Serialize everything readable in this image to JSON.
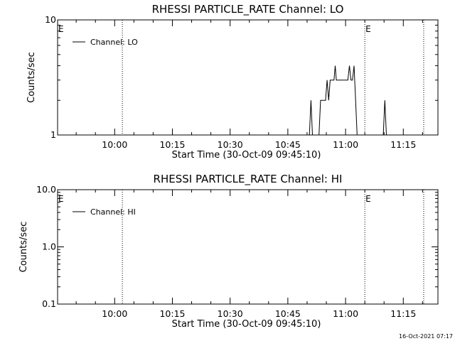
{
  "chart_data": [
    {
      "type": "line",
      "title": "RHESSI PARTICLE_RATE Channel: LO",
      "xlabel": "Start Time (30-Oct-09 09:45:10)",
      "ylabel": "Counts/sec",
      "yscale": "log",
      "ylim": [
        1,
        10
      ],
      "y_tick_labels": [
        "1",
        "10"
      ],
      "x_tick_labels": [
        "10:00",
        "10:15",
        "10:30",
        "10:45",
        "11:00",
        "11:15"
      ],
      "x_tick_minutes": [
        60,
        75,
        90,
        105,
        120,
        135
      ],
      "xlim_minutes": [
        45.17,
        144.0
      ],
      "legend": "top-left",
      "grid": false,
      "series": [
        {
          "name": "Channel: LO",
          "x_minutes": [
            110.0,
            110.6,
            111.0,
            111.4,
            111.8,
            112.3,
            112.7,
            113.1,
            113.5,
            114.0,
            114.4,
            114.8,
            115.2,
            115.6,
            116.0,
            116.3,
            116.7,
            117.0,
            117.3,
            117.6,
            117.9,
            118.2,
            118.6,
            119.0,
            119.4,
            119.8,
            120.2,
            120.6,
            121.0,
            121.4,
            121.8,
            122.2,
            122.6,
            123.0,
            123.4,
            123.8,
            124.2,
            124.6,
            125.0,
            125.4,
            125.8,
            126.2,
            126.6,
            127.0,
            127.4,
            127.8,
            128.2,
            128.6,
            129.0,
            129.4,
            129.8,
            130.2,
            130.6,
            131.0
          ],
          "values": [
            1,
            1,
            2,
            1,
            1,
            1,
            1,
            1,
            2,
            2,
            2,
            2,
            3,
            2,
            3,
            3,
            3,
            3,
            4,
            3,
            3,
            3,
            3,
            3,
            3,
            3,
            3,
            3,
            4,
            3,
            3,
            4,
            2,
            1,
            1,
            1,
            1,
            1,
            1,
            1,
            1,
            1,
            1,
            1,
            1,
            1,
            1,
            1,
            1,
            1,
            1,
            2,
            1,
            1
          ]
        }
      ],
      "annotations": [
        {
          "label": "E",
          "x_minutes": 45.5
        },
        {
          "label": "E",
          "x_minutes": 125.0
        }
      ],
      "vlines_minutes": [
        62.0,
        125.0,
        140.3
      ]
    },
    {
      "type": "line",
      "title": "RHESSI PARTICLE_RATE Channel: HI",
      "xlabel": "Start Time (30-Oct-09 09:45:10)",
      "ylabel": "Counts/sec",
      "yscale": "log",
      "ylim": [
        0.1,
        10
      ],
      "y_tick_labels": [
        "0.1",
        "1.0",
        "10.0"
      ],
      "x_tick_labels": [
        "10:00",
        "10:15",
        "10:30",
        "10:45",
        "11:00",
        "11:15"
      ],
      "x_tick_minutes": [
        60,
        75,
        90,
        105,
        120,
        135
      ],
      "xlim_minutes": [
        45.17,
        144.0
      ],
      "legend": "top-left",
      "grid": false,
      "series": [
        {
          "name": "Channel: HI",
          "x_minutes": [],
          "values": []
        }
      ],
      "annotations": [
        {
          "label": "E",
          "x_minutes": 45.5
        },
        {
          "label": "E",
          "x_minutes": 125.0
        }
      ],
      "vlines_minutes": [
        62.0,
        125.0,
        140.3
      ]
    }
  ],
  "footer": {
    "timestamp": "16-Oct-2021 07:17"
  }
}
